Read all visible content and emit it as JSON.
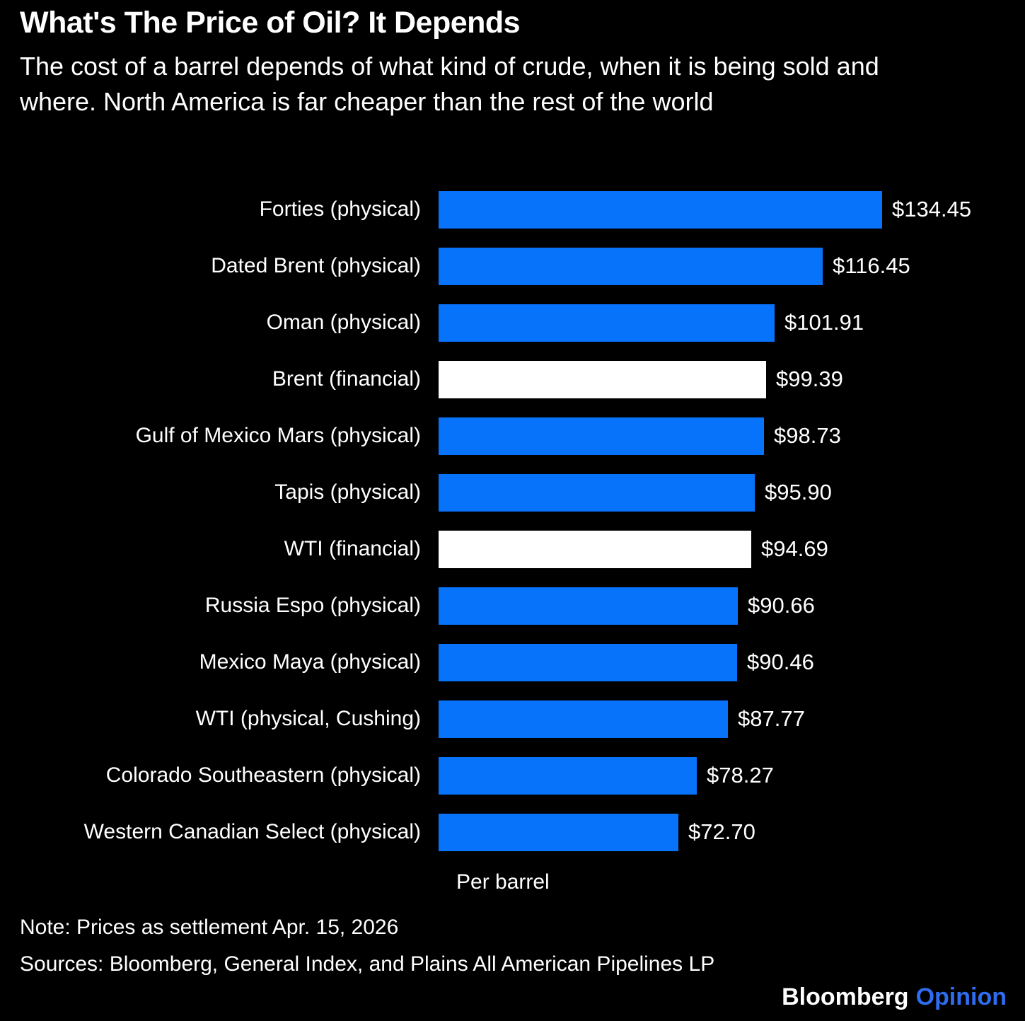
{
  "header": {
    "title": "What's The Price of Oil? It Depends",
    "subtitle": "The cost of a barrel depends of what kind of crude, when it is being sold and where. North America is far cheaper than the rest of the world"
  },
  "chart_data": {
    "type": "bar",
    "orientation": "horizontal",
    "title": "What's The Price of Oil? It Depends",
    "xlabel": "Per barrel",
    "xlim": [
      0,
      134.45
    ],
    "grid": false,
    "legend": "none",
    "background": "#000000",
    "text_color": "#FFFFFF",
    "categories": [
      "Forties (physical)",
      "Dated Brent (physical)",
      "Oman (physical)",
      "Brent (financial)",
      "Gulf of Mexico Mars (physical)",
      "Tapis (physical)",
      "WTI (financial)",
      "Russia Espo (physical)",
      "Mexico Maya (physical)",
      "WTI (physical, Cushing)",
      "Colorado Southeastern (physical)",
      "Western Canadian Select (physical)"
    ],
    "values": [
      134.45,
      116.45,
      101.91,
      99.39,
      98.73,
      95.9,
      94.69,
      90.66,
      90.46,
      87.77,
      78.27,
      72.7
    ],
    "value_labels": [
      "$134.45",
      "$116.45",
      "$101.91",
      "$99.39",
      "$98.73",
      "$95.90",
      "$94.69",
      "$90.66",
      "$90.46",
      "$87.77",
      "$78.27",
      "$72.70"
    ],
    "bar_types": [
      "physical",
      "physical",
      "physical",
      "financial",
      "physical",
      "physical",
      "financial",
      "physical",
      "physical",
      "physical",
      "physical",
      "physical"
    ],
    "colors": {
      "physical": "#0773FB",
      "financial": "#FFFFFF"
    }
  },
  "footer": {
    "note": "Note: Prices as settlement Apr. 15, 2026",
    "sources": "Sources: Bloomberg, General Index, and Plains All American Pipelines LP",
    "brand": "Bloomberg",
    "brand_suffix": "Opinion",
    "brand_suffix_color": "#2E6CF0"
  }
}
